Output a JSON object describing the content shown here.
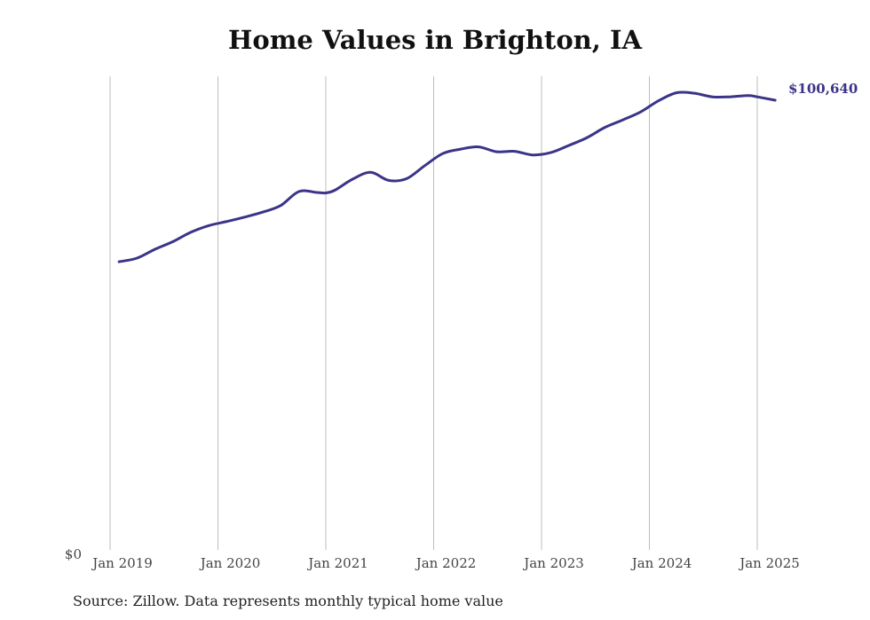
{
  "chart_data": {
    "type": "line",
    "title": "Home Values in Brighton, IA",
    "source_note": "Source: Zillow. Data represents monthly typical home value",
    "xlabel": "",
    "ylabel": "",
    "y_zero_label": "$0",
    "ylim": [
      0,
      106000
    ],
    "grid": "vertical",
    "line_color": "#3b3488",
    "x_ticks": [
      {
        "date": "2019-01",
        "label": "Jan 2019"
      },
      {
        "date": "2020-01",
        "label": "Jan 2020"
      },
      {
        "date": "2021-01",
        "label": "Jan 2021"
      },
      {
        "date": "2022-01",
        "label": "Jan 2022"
      },
      {
        "date": "2023-01",
        "label": "Jan 2023"
      },
      {
        "date": "2024-01",
        "label": "Jan 2024"
      },
      {
        "date": "2025-01",
        "label": "Jan 2025"
      }
    ],
    "end_label": "$100,640",
    "series": [
      {
        "x": [
          "2019-02",
          "2019-04",
          "2019-06",
          "2019-08",
          "2019-10",
          "2019-12",
          "2020-02",
          "2020-04",
          "2020-06",
          "2020-08",
          "2020-10",
          "2020-12",
          "2021-01",
          "2021-02",
          "2021-04",
          "2021-06",
          "2021-08",
          "2021-10",
          "2021-12",
          "2022-02",
          "2022-04",
          "2022-06",
          "2022-08",
          "2022-10",
          "2022-12",
          "2023-02",
          "2023-04",
          "2023-06",
          "2023-08",
          "2023-10",
          "2023-12",
          "2024-02",
          "2024-04",
          "2024-06",
          "2024-08",
          "2024-10",
          "2024-12",
          "2025-01",
          "2025-03"
        ],
        "values": [
          64500,
          65300,
          67300,
          69000,
          71100,
          72600,
          73500,
          74500,
          75600,
          77100,
          80200,
          80000,
          79900,
          80500,
          83000,
          84500,
          82700,
          83100,
          86000,
          88700,
          89700,
          90200,
          89100,
          89200,
          88400,
          88900,
          90500,
          92200,
          94500,
          96200,
          98000,
          100500,
          102300,
          102200,
          101400,
          101400,
          101700,
          101400,
          100640
        ]
      }
    ]
  }
}
